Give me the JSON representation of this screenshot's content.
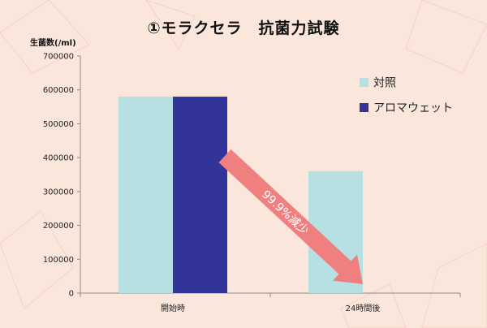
{
  "chart_data": {
    "type": "bar",
    "title": "①モラクセラ　抗菌力試験",
    "ylabel": "生菌数(/ml)",
    "xlabel": "",
    "categories": [
      "開始時",
      "24時間後"
    ],
    "series": [
      {
        "name": "対照",
        "values": [
          580000,
          360000
        ]
      },
      {
        "name": "アロマウェット",
        "values": [
          580000,
          0
        ]
      }
    ],
    "ylim": [
      0,
      700000
    ],
    "yticks": [
      0,
      100000,
      200000,
      300000,
      400000,
      500000,
      600000,
      700000
    ],
    "ytick_labels": [
      "0",
      "100000",
      "200000",
      "300000",
      "400000",
      "500000",
      "600000",
      "700000"
    ],
    "grid": false,
    "legend_position": "right",
    "annotation": "99.9%減少",
    "colors": {
      "control": "#b6e0e2",
      "aromawet": "#32349a",
      "arrow": "#f08080",
      "axis": "#8c8c8c"
    }
  }
}
